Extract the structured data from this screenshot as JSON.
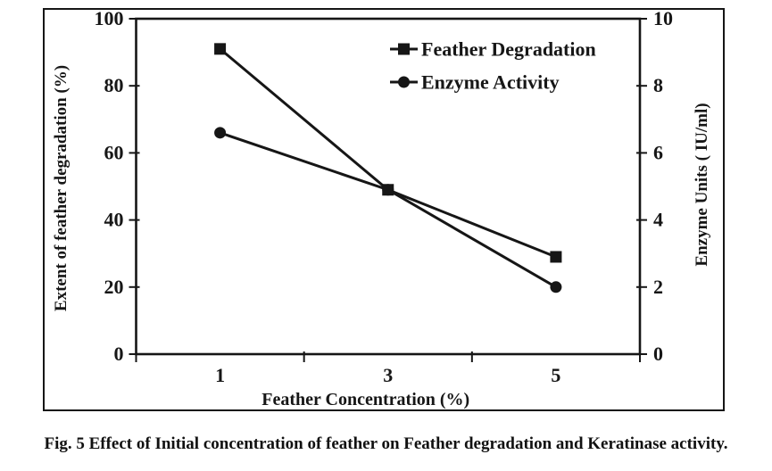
{
  "figure": {
    "caption": "Fig. 5 Effect of Initial concentration of feather on Feather degradation and Keratinase activity."
  },
  "chart_data": {
    "type": "line",
    "title": "",
    "categories": [
      "1",
      "3",
      "5"
    ],
    "series": [
      {
        "name": "Feather Degradation",
        "marker": "square",
        "axis": "left",
        "values": [
          91,
          49,
          29
        ]
      },
      {
        "name": "Enzyme Activity",
        "marker": "circle",
        "axis": "right",
        "values": [
          6.6,
          4.9,
          2.0
        ]
      }
    ],
    "x_axis": {
      "label": "Feather Concentration (%)"
    },
    "y_axis_left": {
      "label": "Extent of feather degradation (%)",
      "range": [
        0,
        100
      ],
      "ticks": [
        0,
        20,
        40,
        60,
        80,
        100
      ]
    },
    "y_axis_right": {
      "label": "Enzyme Units ( IU/ml)",
      "range": [
        0,
        10
      ],
      "ticks": [
        0,
        2,
        4,
        6,
        8,
        10
      ]
    },
    "legend": {
      "position": "top-right",
      "entries": [
        "Feather Degradation",
        "Enzyme Activity"
      ]
    },
    "grid": false,
    "line_color": "#161616",
    "background": "#ffffff"
  }
}
